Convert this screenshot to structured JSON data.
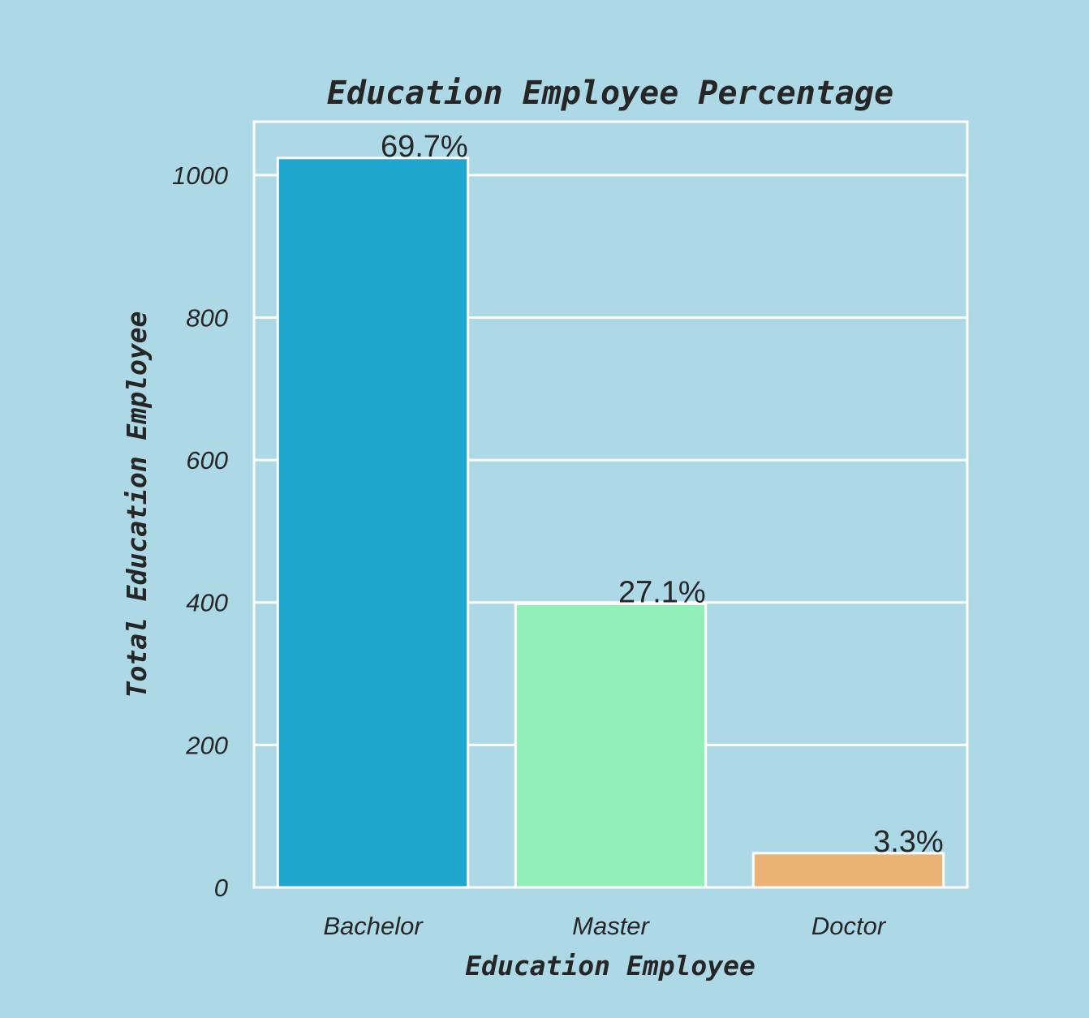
{
  "chart_data": {
    "type": "bar",
    "title": "Education Employee Percentage",
    "xlabel": "Education Employee",
    "ylabel": "Total Education Employee",
    "categories": [
      "Bachelor",
      "Master",
      "Doctor"
    ],
    "values": [
      1024,
      398,
      48
    ],
    "data_labels": [
      "69.7%",
      "27.1%",
      "3.3%"
    ],
    "colors": [
      "#1fa6cf",
      "#90f0b7",
      "#ebb275"
    ],
    "ylim": [
      0,
      1075
    ],
    "yticks": [
      0,
      200,
      400,
      600,
      800,
      1000
    ],
    "grid": "horizontal",
    "background": "#add8e6",
    "grid_color": "#ffffff"
  }
}
